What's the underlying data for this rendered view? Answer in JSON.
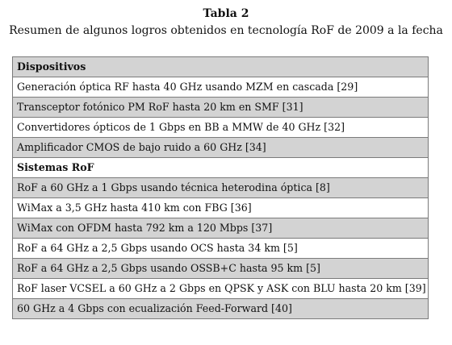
{
  "caption": {
    "title": "Tabla 2",
    "subtitle": "Resumen de algunos logros obtenidos en tecnología RoF de 2009 a la fecha"
  },
  "rows": [
    {
      "text": "Dispositivos",
      "kind": "header",
      "shaded": true
    },
    {
      "text": "Generación óptica RF hasta 40 GHz usando MZM en cascada [29]",
      "kind": "item",
      "shaded": false
    },
    {
      "text": "Transceptor fotónico PM RoF hasta 20 km en SMF [31]",
      "kind": "item",
      "shaded": true
    },
    {
      "text": "Convertidores ópticos de 1 Gbps en BB a MMW de 40 GHz [32]",
      "kind": "item",
      "shaded": false
    },
    {
      "text": "Amplificador CMOS de bajo ruido a 60 GHz [34]",
      "kind": "item",
      "shaded": true
    },
    {
      "text": "Sistemas RoF",
      "kind": "header",
      "shaded": false
    },
    {
      "text": "RoF a 60 GHz a 1 Gbps usando técnica heterodina óptica [8]",
      "kind": "item",
      "shaded": true
    },
    {
      "text": "WiMax a 3,5 GHz hasta 410 km con FBG [36]",
      "kind": "item",
      "shaded": false
    },
    {
      "text": "WiMax con OFDM hasta 792 km a 120 Mbps [37]",
      "kind": "item",
      "shaded": true
    },
    {
      "text": "RoF a 64 GHz a 2,5 Gbps usando OCS hasta 34 km [5]",
      "kind": "item",
      "shaded": false
    },
    {
      "text": "RoF a 64 GHz a 2,5 Gbps usando OSSB+C hasta 95 km [5]",
      "kind": "item",
      "shaded": true
    },
    {
      "text": "RoF laser VCSEL a 60 GHz a 2 Gbps en QPSK y ASK con BLU hasta 20 km [39]",
      "kind": "item",
      "shaded": false
    },
    {
      "text": "60 GHz a 4 Gbps con ecualización Feed-Forward [40]",
      "kind": "item",
      "shaded": true
    }
  ]
}
